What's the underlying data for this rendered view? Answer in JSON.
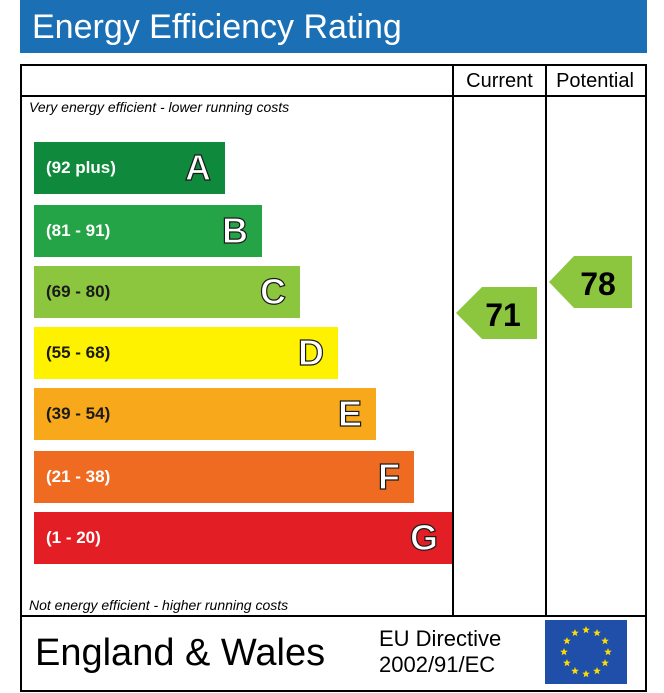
{
  "title": "Energy Efficiency Rating",
  "columns": {
    "current": "Current",
    "potential": "Potential"
  },
  "notes": {
    "top": "Very energy efficient - lower running costs",
    "bottom": "Not energy efficient - higher running costs"
  },
  "bands": [
    {
      "range": "(92 plus)",
      "letter": "A",
      "color": "#0f8a3c"
    },
    {
      "range": "(81 - 91)",
      "letter": "B",
      "color": "#24a447"
    },
    {
      "range": "(69 - 80)",
      "letter": "C",
      "color": "#8cc63f"
    },
    {
      "range": "(55 - 68)",
      "letter": "D",
      "color": "#fff200"
    },
    {
      "range": "(39 - 54)",
      "letter": "E",
      "color": "#f7a81b"
    },
    {
      "range": "(21 - 38)",
      "letter": "F",
      "color": "#ef6b22"
    },
    {
      "range": "(1 - 20)",
      "letter": "G",
      "color": "#e31e25"
    }
  ],
  "ratings": {
    "current": {
      "value": "71",
      "band": "C",
      "color": "#8cc63f"
    },
    "potential": {
      "value": "78",
      "band": "C",
      "color": "#8cc63f"
    }
  },
  "footer": {
    "region": "England & Wales",
    "directive_line1": "EU Directive",
    "directive_line2": "2002/91/EC",
    "flag": "eu-flag-icon"
  }
}
